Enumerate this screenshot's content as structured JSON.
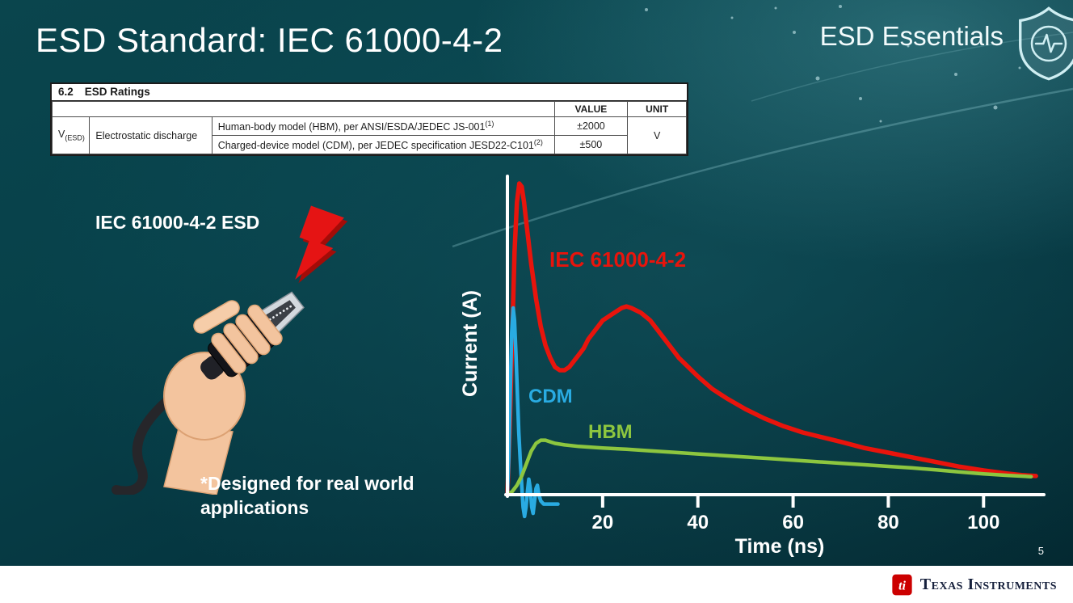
{
  "header": {
    "title": "ESD Standard: IEC 61000-4-2",
    "series_title": "ESD Essentials"
  },
  "ratings_table": {
    "section": "6.2",
    "section_title": "ESD Ratings",
    "col_headers": {
      "value": "VALUE",
      "unit": "UNIT"
    },
    "row_symbol": "V",
    "row_symbol_sub": "(ESD)",
    "row_label": "Electrostatic discharge",
    "rows": [
      {
        "desc": "Human-body model (HBM), per ANSI/ESDA/JEDEC JS-001",
        "sup": "(1)",
        "value": "±2000"
      },
      {
        "desc": "Charged-device model (CDM), per JEDEC specification JESD22-C101",
        "sup": "(2)",
        "value": "±500"
      }
    ],
    "unit": "V"
  },
  "left_panel": {
    "label": "IEC 61000-4-2 ESD",
    "note": "*Designed for real world applications"
  },
  "chart_data": {
    "type": "line",
    "title": "",
    "xlabel": "Time (ns)",
    "ylabel": "Current (A)",
    "xlim": [
      0,
      112
    ],
    "ylim": [
      -0.08,
      1.05
    ],
    "xticks": [
      20,
      40,
      60,
      80,
      100
    ],
    "yticks": [],
    "grid": false,
    "legend_position": "inline-labels",
    "y_units": "relative amplitude (y axis unlabeled)",
    "series": [
      {
        "name": "IEC 61000-4-2",
        "color": "#e8140c",
        "points": [
          [
            0,
            0
          ],
          [
            0.5,
            0.22
          ],
          [
            1,
            0.5
          ],
          [
            1.5,
            0.78
          ],
          [
            2,
            0.94
          ],
          [
            2.5,
            1.0
          ],
          [
            3,
            0.99
          ],
          [
            3.5,
            0.94
          ],
          [
            4,
            0.87
          ],
          [
            5,
            0.74
          ],
          [
            6,
            0.63
          ],
          [
            7,
            0.54
          ],
          [
            8,
            0.48
          ],
          [
            9,
            0.44
          ],
          [
            10,
            0.41
          ],
          [
            11,
            0.4
          ],
          [
            12,
            0.4
          ],
          [
            13,
            0.41
          ],
          [
            14,
            0.43
          ],
          [
            15,
            0.45
          ],
          [
            16,
            0.47
          ],
          [
            17,
            0.5
          ],
          [
            18,
            0.52
          ],
          [
            20,
            0.56
          ],
          [
            22,
            0.58
          ],
          [
            24,
            0.6
          ],
          [
            25,
            0.605
          ],
          [
            26,
            0.6
          ],
          [
            28,
            0.585
          ],
          [
            30,
            0.56
          ],
          [
            32,
            0.52
          ],
          [
            34,
            0.48
          ],
          [
            36,
            0.44
          ],
          [
            38,
            0.41
          ],
          [
            40,
            0.38
          ],
          [
            43,
            0.34
          ],
          [
            46,
            0.31
          ],
          [
            50,
            0.275
          ],
          [
            54,
            0.245
          ],
          [
            58,
            0.22
          ],
          [
            62,
            0.2
          ],
          [
            66,
            0.185
          ],
          [
            70,
            0.17
          ],
          [
            75,
            0.15
          ],
          [
            80,
            0.135
          ],
          [
            85,
            0.12
          ],
          [
            90,
            0.105
          ],
          [
            95,
            0.09
          ],
          [
            100,
            0.078
          ],
          [
            105,
            0.068
          ],
          [
            108,
            0.063
          ],
          [
            111,
            0.06
          ]
        ]
      },
      {
        "name": "CDM",
        "color": "#29abe2",
        "points": [
          [
            0,
            0
          ],
          [
            0.3,
            0.12
          ],
          [
            0.6,
            0.33
          ],
          [
            0.9,
            0.52
          ],
          [
            1.2,
            0.6
          ],
          [
            1.5,
            0.56
          ],
          [
            1.8,
            0.45
          ],
          [
            2.1,
            0.32
          ],
          [
            2.4,
            0.2
          ],
          [
            2.7,
            0.11
          ],
          [
            3.0,
            0.03
          ],
          [
            3.3,
            -0.04
          ],
          [
            3.6,
            -0.07
          ],
          [
            3.9,
            -0.04
          ],
          [
            4.2,
            0.01
          ],
          [
            4.5,
            0.05
          ],
          [
            4.8,
            0.02
          ],
          [
            5.1,
            -0.04
          ],
          [
            5.4,
            -0.06
          ],
          [
            5.7,
            -0.02
          ],
          [
            6.0,
            0.02
          ],
          [
            6.3,
            0.03
          ],
          [
            6.6,
            0.0
          ],
          [
            7.0,
            -0.02
          ],
          [
            7.6,
            -0.03
          ],
          [
            8.4,
            -0.03
          ],
          [
            9.5,
            -0.03
          ],
          [
            10.6,
            -0.03
          ]
        ]
      },
      {
        "name": "HBM",
        "color": "#8dc63f",
        "points": [
          [
            0,
            0
          ],
          [
            1,
            0.01
          ],
          [
            2,
            0.03
          ],
          [
            3,
            0.06
          ],
          [
            4,
            0.1
          ],
          [
            5,
            0.14
          ],
          [
            6,
            0.165
          ],
          [
            7,
            0.175
          ],
          [
            8,
            0.175
          ],
          [
            9,
            0.17
          ],
          [
            10,
            0.165
          ],
          [
            12,
            0.16
          ],
          [
            15,
            0.155
          ],
          [
            20,
            0.15
          ],
          [
            25,
            0.146
          ],
          [
            30,
            0.141
          ],
          [
            35,
            0.136
          ],
          [
            40,
            0.131
          ],
          [
            45,
            0.126
          ],
          [
            50,
            0.121
          ],
          [
            55,
            0.116
          ],
          [
            60,
            0.111
          ],
          [
            65,
            0.106
          ],
          [
            70,
            0.101
          ],
          [
            75,
            0.096
          ],
          [
            80,
            0.091
          ],
          [
            85,
            0.086
          ],
          [
            90,
            0.08
          ],
          [
            95,
            0.073
          ],
          [
            100,
            0.067
          ],
          [
            105,
            0.062
          ],
          [
            110,
            0.058
          ]
        ]
      }
    ]
  },
  "footer": {
    "page_number": "5",
    "brand": "Texas Instruments"
  },
  "icons": {
    "shield": "shield-with-heartbeat-pulse",
    "bolt": "red-lightning-bolt",
    "ti_bug": "texas-instruments-red-ti-emblem"
  }
}
